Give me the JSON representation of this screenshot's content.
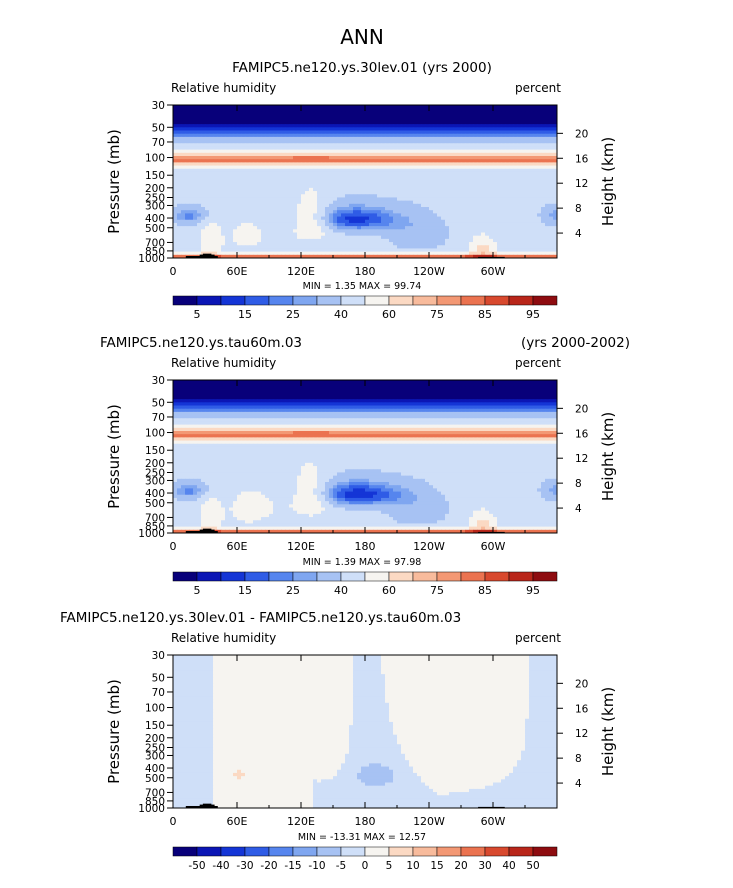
{
  "figure": {
    "title": "ANN"
  },
  "chart_data": [
    {
      "type": "heatmap",
      "title": "FAMIPC5.ne120.ys.30lev.01 (yrs 2000)",
      "title_right": "",
      "left_label": "Relative humidity",
      "right_label": "percent",
      "ylabel": "Pressure (mb)",
      "y2label": "Height (km)",
      "x_ticks": [
        "0",
        "60E",
        "120E",
        "180",
        "120W",
        "60W"
      ],
      "y_ticks": [
        "1000",
        "850",
        "700",
        "500",
        "400",
        "300",
        "250",
        "200",
        "150",
        "100",
        "70",
        "50",
        "30"
      ],
      "y2_ticks": [
        "4",
        "8",
        "12",
        "16",
        "20"
      ],
      "stats": "MIN =    1.35   MAX =   99.74",
      "colorbar_labels": [
        "5",
        "15",
        "25",
        "40",
        "60",
        "75",
        "85",
        "95"
      ],
      "min": 1.35,
      "max": 99.74
    },
    {
      "type": "heatmap",
      "title": "FAMIPC5.ne120.ys.tau60m.03",
      "title_right": "(yrs 2000-2002)",
      "left_label": "Relative humidity",
      "right_label": "percent",
      "ylabel": "Pressure (mb)",
      "y2label": "Height (km)",
      "x_ticks": [
        "0",
        "60E",
        "120E",
        "180",
        "120W",
        "60W"
      ],
      "y_ticks": [
        "1000",
        "850",
        "700",
        "500",
        "400",
        "300",
        "250",
        "200",
        "150",
        "100",
        "70",
        "50",
        "30"
      ],
      "y2_ticks": [
        "4",
        "8",
        "12",
        "16",
        "20"
      ],
      "stats": "MIN =    1.39   MAX =   97.98",
      "colorbar_labels": [
        "5",
        "15",
        "25",
        "40",
        "60",
        "75",
        "85",
        "95"
      ],
      "min": 1.39,
      "max": 97.98
    },
    {
      "type": "heatmap",
      "title": "FAMIPC5.ne120.ys.30lev.01 - FAMIPC5.ne120.ys.tau60m.03",
      "title_right": "",
      "left_label": "Relative humidity",
      "right_label": "percent",
      "ylabel": "Pressure (mb)",
      "y2label": "Height (km)",
      "x_ticks": [
        "0",
        "60E",
        "120E",
        "180",
        "120W",
        "60W"
      ],
      "y_ticks": [
        "1000",
        "850",
        "700",
        "500",
        "400",
        "300",
        "250",
        "200",
        "150",
        "100",
        "70",
        "50",
        "30"
      ],
      "y2_ticks": [
        "4",
        "8",
        "12",
        "16",
        "20"
      ],
      "stats": "MIN = -13.31   MAX =   12.57",
      "colorbar_labels": [
        "-50",
        "-40",
        "-30",
        "-20",
        "-15",
        "-10",
        "-5",
        "0",
        "5",
        "10",
        "15",
        "20",
        "30",
        "40",
        "50"
      ],
      "min": -13.31,
      "max": 12.57
    }
  ],
  "colors": {
    "palette": [
      "#08007a",
      "#0b16b5",
      "#1435d6",
      "#2f5ce6",
      "#5685ee",
      "#7fa6f0",
      "#a7c2f3",
      "#cfdff8",
      "#f6f4f0",
      "#fbd9c3",
      "#f8bb9c",
      "#f39874",
      "#eb7350",
      "#d8492e",
      "#b9261a",
      "#8e0c10"
    ]
  }
}
